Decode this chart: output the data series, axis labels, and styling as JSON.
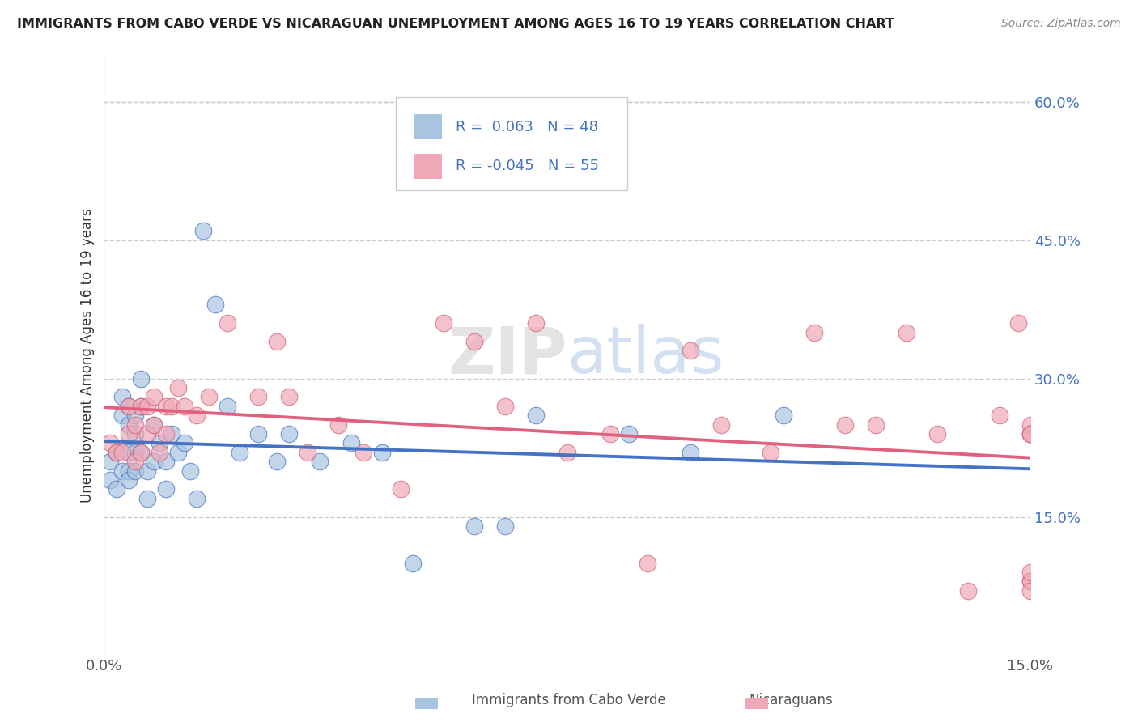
{
  "title": "IMMIGRANTS FROM CABO VERDE VS NICARAGUAN UNEMPLOYMENT AMONG AGES 16 TO 19 YEARS CORRELATION CHART",
  "source": "Source: ZipAtlas.com",
  "ylabel": "Unemployment Among Ages 16 to 19 years",
  "xlim": [
    0.0,
    0.15
  ],
  "ylim": [
    0.0,
    0.65
  ],
  "yticks_right": [
    0.15,
    0.3,
    0.45,
    0.6
  ],
  "ytick_labels_right": [
    "15.0%",
    "30.0%",
    "45.0%",
    "60.0%"
  ],
  "legend_r1": "0.063",
  "legend_n1": "48",
  "legend_r2": "-0.045",
  "legend_n2": "55",
  "color_blue": "#a8c4e0",
  "color_pink": "#f0a8b8",
  "line_blue": "#4472c4",
  "line_pink": "#e06080",
  "cabo_verde_x": [
    0.001,
    0.001,
    0.002,
    0.002,
    0.003,
    0.003,
    0.003,
    0.004,
    0.004,
    0.004,
    0.004,
    0.004,
    0.005,
    0.005,
    0.005,
    0.005,
    0.006,
    0.006,
    0.006,
    0.007,
    0.007,
    0.008,
    0.008,
    0.009,
    0.01,
    0.01,
    0.011,
    0.012,
    0.013,
    0.014,
    0.015,
    0.016,
    0.018,
    0.02,
    0.022,
    0.025,
    0.028,
    0.03,
    0.035,
    0.04,
    0.045,
    0.05,
    0.06,
    0.065,
    0.07,
    0.085,
    0.095,
    0.11
  ],
  "cabo_verde_y": [
    0.21,
    0.19,
    0.22,
    0.18,
    0.28,
    0.26,
    0.2,
    0.27,
    0.25,
    0.22,
    0.2,
    0.19,
    0.26,
    0.24,
    0.22,
    0.2,
    0.3,
    0.27,
    0.22,
    0.2,
    0.17,
    0.25,
    0.21,
    0.23,
    0.21,
    0.18,
    0.24,
    0.22,
    0.23,
    0.2,
    0.17,
    0.46,
    0.38,
    0.27,
    0.22,
    0.24,
    0.21,
    0.24,
    0.21,
    0.23,
    0.22,
    0.1,
    0.14,
    0.14,
    0.26,
    0.24,
    0.22,
    0.26
  ],
  "nicaraguan_x": [
    0.001,
    0.002,
    0.003,
    0.004,
    0.004,
    0.005,
    0.005,
    0.006,
    0.006,
    0.007,
    0.007,
    0.008,
    0.008,
    0.009,
    0.01,
    0.01,
    0.011,
    0.012,
    0.013,
    0.015,
    0.017,
    0.02,
    0.025,
    0.028,
    0.03,
    0.033,
    0.038,
    0.042,
    0.048,
    0.055,
    0.06,
    0.065,
    0.07,
    0.075,
    0.082,
    0.088,
    0.095,
    0.1,
    0.108,
    0.115,
    0.12,
    0.125,
    0.13,
    0.135,
    0.14,
    0.145,
    0.148,
    0.15,
    0.15,
    0.15,
    0.15,
    0.15,
    0.15,
    0.15,
    0.15
  ],
  "nicaraguan_y": [
    0.23,
    0.22,
    0.22,
    0.27,
    0.24,
    0.25,
    0.21,
    0.27,
    0.22,
    0.27,
    0.24,
    0.28,
    0.25,
    0.22,
    0.27,
    0.24,
    0.27,
    0.29,
    0.27,
    0.26,
    0.28,
    0.36,
    0.28,
    0.34,
    0.28,
    0.22,
    0.25,
    0.22,
    0.18,
    0.36,
    0.34,
    0.27,
    0.36,
    0.22,
    0.24,
    0.1,
    0.33,
    0.25,
    0.22,
    0.35,
    0.25,
    0.25,
    0.35,
    0.24,
    0.07,
    0.26,
    0.36,
    0.25,
    0.08,
    0.24,
    0.08,
    0.24,
    0.07,
    0.24,
    0.09
  ]
}
